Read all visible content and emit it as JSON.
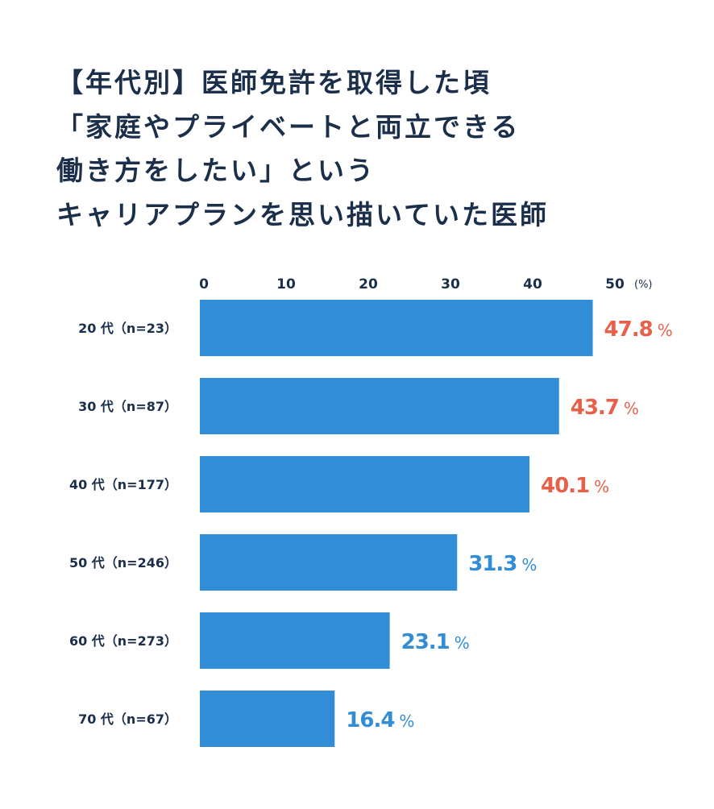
{
  "title_lines": [
    "【年代別】医師免許を取得した頃",
    "「家庭やプライベートと両立できる",
    "働き方をしたい」という",
    "キャリアプランを思い描いていた医師"
  ],
  "chart_data": {
    "type": "bar",
    "orientation": "horizontal",
    "title": "【年代別】医師免許を取得した頃「家庭やプライベートと両立できる働き方をしたい」というキャリアプランを思い描いていた医師",
    "categories": [
      "20 代（n=23）",
      "30 代（n=87）",
      "40 代（n=177）",
      "50 代（n=246）",
      "60 代（n=273）",
      "70 代（n=67）"
    ],
    "values": [
      47.8,
      43.7,
      40.1,
      31.3,
      23.1,
      16.4
    ],
    "value_labels": [
      "47.8",
      "43.7",
      "40.1",
      "31.3",
      "23.1",
      "16.4"
    ],
    "value_unit": "%",
    "xlim": [
      0,
      50
    ],
    "x_ticks": [
      "0",
      "10",
      "20",
      "30",
      "40",
      "50"
    ],
    "x_unit_label": "(%)",
    "grid": false,
    "colors": {
      "bar": "#318ed6",
      "label_highlight": "#e8604a",
      "label_normal": "#318ed6",
      "text": "#1b2f4b"
    },
    "highlighted_categories": [
      "20 代（n=23）",
      "30 代（n=87）",
      "40 代（n=177）"
    ]
  }
}
